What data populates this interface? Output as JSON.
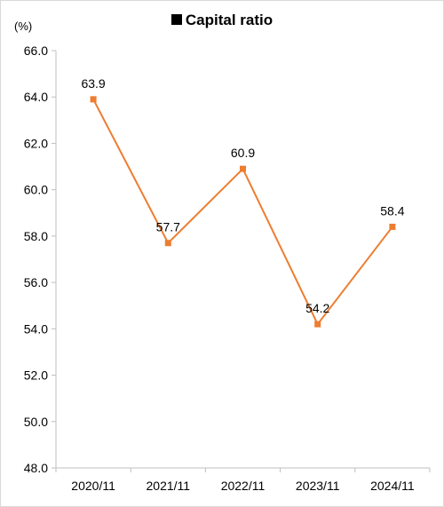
{
  "chart_data": {
    "type": "line",
    "title": "Capital ratio",
    "unit_label": "(%)",
    "categories": [
      "2020/11",
      "2021/11",
      "2022/11",
      "2023/11",
      "2024/11"
    ],
    "series": [
      {
        "values": [
          63.9,
          57.7,
          60.9,
          54.2,
          58.4
        ],
        "color": "#ED7D31"
      }
    ],
    "data_labels": [
      "63.9",
      "57.7",
      "60.9",
      "54.2",
      "58.4"
    ],
    "y_ticks": [
      "66.0",
      "64.0",
      "62.0",
      "60.0",
      "58.0",
      "56.0",
      "54.0",
      "52.0",
      "50.0",
      "48.0"
    ],
    "ylim": [
      48,
      66
    ],
    "ystep": 2,
    "grid": false,
    "legend": "none",
    "marker": "square"
  }
}
